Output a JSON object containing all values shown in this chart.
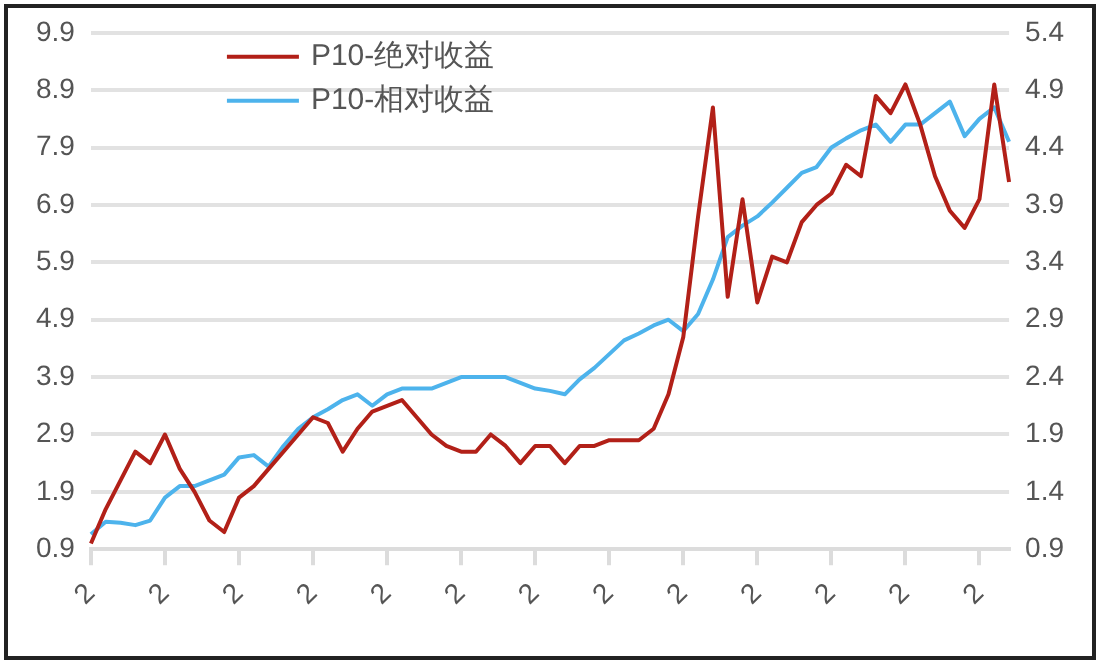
{
  "chart_data": {
    "type": "line",
    "categories": [
      "2",
      null,
      null,
      null,
      null,
      "2",
      null,
      null,
      null,
      null,
      "2",
      null,
      null,
      null,
      null,
      "2",
      null,
      null,
      null,
      null,
      "2",
      null,
      null,
      null,
      null,
      "2",
      null,
      null,
      null,
      null,
      "2",
      null,
      null,
      null,
      null,
      "2",
      null,
      null,
      null,
      null,
      "2",
      null,
      null,
      null,
      null,
      "2",
      null,
      null,
      null,
      null,
      "2",
      null,
      null,
      null,
      null,
      "2",
      null,
      null,
      null,
      null,
      "2",
      null,
      null
    ],
    "ylim": [
      0.9,
      9.9
    ],
    "yticks": [
      0.9,
      1.9,
      2.9,
      3.9,
      4.9,
      5.9,
      6.9,
      7.9,
      8.9,
      9.9
    ],
    "y2lim": [
      0.9,
      5.4
    ],
    "y2ticks": [
      0.9,
      1.4,
      1.9,
      2.4,
      2.9,
      3.4,
      3.9,
      4.4,
      4.9,
      5.4
    ],
    "grid": "y",
    "legend": "top left",
    "marker": "none",
    "line_style": "solid",
    "series": [
      {
        "name": "P10-绝对收益",
        "color": "#b22018",
        "values": [
          1.0,
          1.6,
          2.1,
          2.6,
          2.4,
          2.9,
          2.3,
          1.9,
          1.4,
          1.2,
          1.8,
          2.0,
          2.3,
          2.6,
          2.9,
          3.2,
          3.1,
          2.6,
          3.0,
          3.3,
          3.4,
          3.5,
          3.2,
          2.9,
          2.7,
          2.6,
          2.6,
          2.9,
          2.7,
          2.4,
          2.7,
          2.7,
          2.4,
          2.7,
          2.7,
          2.8,
          2.8,
          2.8,
          3.0,
          3.6,
          4.6,
          6.7,
          8.6,
          5.3,
          7.0,
          5.2,
          6.0,
          5.9,
          6.6,
          6.9,
          7.1,
          7.6,
          7.4,
          8.8,
          8.5,
          9.0,
          8.3,
          7.4,
          6.8,
          6.5,
          7.0,
          9.0,
          7.3
        ]
      },
      {
        "name": "P10-相对收益",
        "color": "#4db3ec",
        "axis": "y2",
        "values": [
          1.03,
          1.14,
          1.13,
          1.11,
          1.15,
          1.35,
          1.45,
          1.45,
          1.5,
          1.55,
          1.7,
          1.72,
          1.62,
          1.8,
          1.95,
          2.05,
          2.12,
          2.2,
          2.25,
          2.15,
          2.25,
          2.3,
          2.3,
          2.3,
          2.35,
          2.4,
          2.4,
          2.4,
          2.4,
          2.35,
          2.3,
          2.28,
          2.25,
          2.38,
          2.48,
          2.6,
          2.72,
          2.78,
          2.85,
          2.9,
          2.8,
          2.95,
          3.25,
          3.62,
          3.72,
          3.8,
          3.92,
          4.05,
          4.18,
          4.23,
          4.4,
          4.48,
          4.55,
          4.6,
          4.45,
          4.6,
          4.6,
          4.7,
          4.8,
          4.5,
          4.65,
          4.75,
          4.45
        ]
      }
    ]
  }
}
